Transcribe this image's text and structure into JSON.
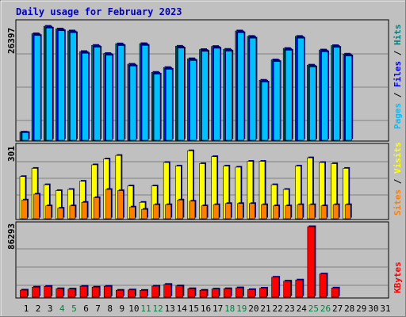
{
  "title": "Daily usage for February 2023",
  "colors": {
    "background": "#c0c0c0",
    "title": "#0000c0",
    "pages": "#00c0ff",
    "files": "#0000ff",
    "hits": "#008080",
    "visits": "#ffff00",
    "sites": "#ff8000",
    "kbytes": "#ff0000",
    "weekend_label": "#008040",
    "day_label": "#000000"
  },
  "chart_data": [
    {
      "type": "bar",
      "panel": "hits_files_pages",
      "ymax_label": "26397",
      "right_label": [
        "Pages",
        "Files",
        "Hits"
      ],
      "categories": [
        "1",
        "2",
        "3",
        "4",
        "5",
        "6",
        "7",
        "8",
        "9",
        "10",
        "11",
        "12",
        "13",
        "14",
        "15",
        "16",
        "17",
        "18",
        "19",
        "20",
        "21",
        "22",
        "23",
        "24",
        "25",
        "26",
        "27",
        "28",
        "29",
        "30",
        "31"
      ],
      "ylim": [
        0,
        26397
      ],
      "series": [
        {
          "name": "Hits",
          "values": [
            1870,
            24300,
            26000,
            25400,
            24950,
            20250,
            21650,
            19800,
            22000,
            17350,
            22050,
            15500,
            16600,
            21450,
            18600,
            20700,
            21400,
            20750,
            24950,
            23700,
            13700,
            18350,
            20950,
            23700,
            17150,
            20600,
            21600,
            19650,
            0,
            0,
            0
          ]
        },
        {
          "name": "Files",
          "values": [
            1800,
            24100,
            25800,
            25200,
            24750,
            20050,
            21450,
            19600,
            21800,
            17150,
            21850,
            15300,
            16400,
            21250,
            18400,
            20500,
            21200,
            20550,
            24750,
            23500,
            13500,
            18150,
            20750,
            23500,
            16950,
            20400,
            21400,
            19450,
            0,
            0,
            0
          ]
        },
        {
          "name": "Pages",
          "values": [
            1750,
            23900,
            25600,
            25000,
            24550,
            19850,
            21250,
            19400,
            21600,
            16950,
            21650,
            15100,
            16200,
            21050,
            18200,
            20300,
            21000,
            20350,
            24550,
            23300,
            13300,
            17950,
            20550,
            23300,
            16750,
            20200,
            21200,
            19250,
            0,
            0,
            0
          ]
        }
      ]
    },
    {
      "type": "bar",
      "panel": "visits_sites",
      "ymax_label": "301",
      "right_label": [
        "Sites",
        "Visits"
      ],
      "categories": [
        "1",
        "2",
        "3",
        "4",
        "5",
        "6",
        "7",
        "8",
        "9",
        "10",
        "11",
        "12",
        "13",
        "14",
        "15",
        "16",
        "17",
        "18",
        "19",
        "20",
        "21",
        "22",
        "23",
        "24",
        "25",
        "26",
        "27",
        "28",
        "29",
        "30",
        "31"
      ],
      "ylim": [
        0,
        301
      ],
      "series": [
        {
          "name": "Visits",
          "values": [
            180,
            215,
            145,
            120,
            125,
            160,
            230,
            255,
            270,
            140,
            70,
            140,
            240,
            225,
            290,
            235,
            265,
            225,
            220,
            245,
            245,
            145,
            125,
            225,
            260,
            240,
            235,
            215,
            0,
            0,
            0
          ]
        },
        {
          "name": "Sites",
          "values": [
            80,
            105,
            55,
            45,
            55,
            70,
            90,
            125,
            120,
            50,
            40,
            60,
            60,
            80,
            75,
            55,
            60,
            65,
            65,
            65,
            60,
            55,
            55,
            60,
            60,
            55,
            60,
            60,
            0,
            0,
            0
          ]
        }
      ]
    },
    {
      "type": "bar",
      "panel": "kbytes",
      "ymax_label": "86293",
      "right_label": [
        "KBytes"
      ],
      "categories": [
        "1",
        "2",
        "3",
        "4",
        "5",
        "6",
        "7",
        "8",
        "9",
        "10",
        "11",
        "12",
        "13",
        "14",
        "15",
        "16",
        "17",
        "18",
        "19",
        "20",
        "21",
        "22",
        "23",
        "24",
        "25",
        "26",
        "27",
        "28",
        "29",
        "30",
        "31"
      ],
      "ylim": [
        0,
        86293
      ],
      "series": [
        {
          "name": "KBytes",
          "values": [
            8700,
            12400,
            13300,
            10400,
            10000,
            13400,
            12400,
            13400,
            8500,
            8900,
            8400,
            13600,
            15700,
            13800,
            10400,
            8500,
            10000,
            10400,
            11500,
            9300,
            11100,
            24500,
            19700,
            21100,
            86293,
            28400,
            11300,
            0,
            0,
            0,
            0
          ]
        }
      ]
    }
  ],
  "weekend_days": [
    4,
    5,
    11,
    12,
    18,
    19,
    25,
    26
  ]
}
